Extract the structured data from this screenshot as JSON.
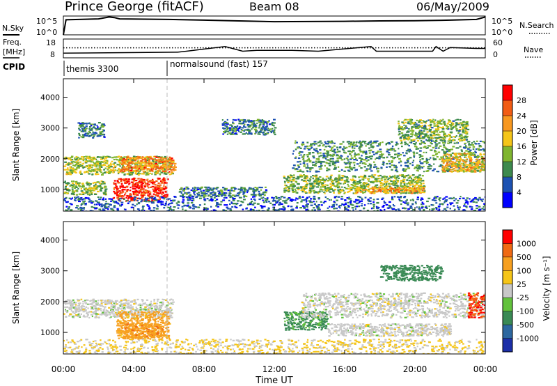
{
  "header": {
    "station": "Prince George (fitACF)",
    "beam": "Beam 08",
    "date": "06/May/2009"
  },
  "panels": {
    "nsky_label": "N.Sky",
    "nsearch_label": "N.Search",
    "freq_label_1": "Freq.",
    "freq_label_2": "[MHz]",
    "nave_label": "Nave",
    "cpid_label": "CPID",
    "nsky_ticks": [
      "10^5",
      "10^0"
    ],
    "nsearch_ticks": [
      "10^5",
      "10^0"
    ],
    "freq_ticks": [
      "18",
      "8"
    ],
    "nave_ticks": [
      "60",
      "0"
    ],
    "cpid_segments": [
      {
        "start_hour": 0.0,
        "label": "themis 3300"
      },
      {
        "start_hour": 6.0,
        "label": "normalsound (fast) 157"
      }
    ]
  },
  "axes": {
    "xlabel": "Time UT",
    "ylabel": "Slant Range [km]",
    "x_ticks": [
      "00:00",
      "04:00",
      "08:00",
      "12:00",
      "16:00",
      "20:00",
      "00:00"
    ],
    "y_ticks": [
      "1000",
      "2000",
      "3000",
      "4000"
    ]
  },
  "colorbars": {
    "power": {
      "label": "Power [dB]",
      "ticks": [
        "28",
        "24",
        "20",
        "16",
        "12",
        "8",
        "4"
      ],
      "colors": [
        "#0000ff",
        "#1d52b2",
        "#3d8a4e",
        "#7fb52f",
        "#f5c518",
        "#f89820",
        "#f25c14",
        "#ff0000"
      ]
    },
    "velocity": {
      "label": "Velocity [m s⁻¹]",
      "ticks": [
        "1000",
        "500",
        "100",
        "25",
        "-25",
        "-100",
        "-500",
        "-1000"
      ],
      "colors": [
        "#1c2fa8",
        "#2d68a0",
        "#3a8a55",
        "#62c23c",
        "#c8c8c8",
        "#f5c518",
        "#f7a020",
        "#f06a14",
        "#ff0000"
      ]
    }
  },
  "chart_data": [
    {
      "type": "line",
      "title": "N.Sky / N.Search",
      "x_unit": "hours UT",
      "x": [
        0,
        0.15,
        2,
        2.6,
        2.9,
        3.2,
        6,
        8,
        12,
        16,
        18,
        20,
        22,
        23.5,
        24
      ],
      "series": [
        {
          "name": "N.Sky",
          "values": [
            0.0,
            0.8,
            0.85,
            0.95,
            0.92,
            0.85,
            0.82,
            0.78,
            0.7,
            0.72,
            0.74,
            0.75,
            0.78,
            0.82,
            0.95
          ]
        }
      ],
      "ylim": [
        0,
        1
      ]
    },
    {
      "type": "line",
      "title": "Freq / Nave",
      "x": [
        0,
        6.5,
        7,
        9.2,
        10.2,
        11,
        13,
        14.5,
        17.5,
        17.8,
        21,
        21.2,
        21.6,
        22,
        23.5,
        24
      ],
      "series": [
        {
          "name": "Freq. [MHz]",
          "values": [
            10.5,
            11,
            11.5,
            14,
            11.5,
            12,
            12,
            11.5,
            14,
            11.5,
            11.5,
            14,
            11.5,
            13.5,
            13,
            13
          ]
        },
        {
          "name": "Nave",
          "values": [
            32,
            32,
            32,
            32,
            32,
            32,
            32,
            32,
            32,
            32,
            32,
            32,
            32,
            32,
            32,
            32
          ]
        }
      ],
      "ylim": [
        8,
        18
      ]
    },
    {
      "type": "heatmap",
      "title": "Power",
      "x_range": [
        0,
        24
      ],
      "y_range": [
        300,
        4600
      ],
      "ylabel": "Slant Range [km]",
      "zlabel": "Power [dB]",
      "zlim": [
        0,
        30
      ],
      "regions": [
        {
          "x": [
            0,
            6.2
          ],
          "y": [
            1500,
            2100
          ],
          "z": 14
        },
        {
          "x": [
            3.2,
            6.3
          ],
          "y": [
            1600,
            2100
          ],
          "z": 22
        },
        {
          "x": [
            2.8,
            5.9
          ],
          "y": [
            650,
            1400
          ],
          "z": 27
        },
        {
          "x": [
            0,
            2.4
          ],
          "y": [
            850,
            1300
          ],
          "z": 13
        },
        {
          "x": [
            6.5,
            11.5
          ],
          "y": [
            800,
            1100
          ],
          "z": 8
        },
        {
          "x": [
            12.5,
            20.5
          ],
          "y": [
            900,
            1500
          ],
          "z": 13
        },
        {
          "x": [
            16.5,
            20.5
          ],
          "y": [
            900,
            1100
          ],
          "z": 20
        },
        {
          "x": [
            13,
            24
          ],
          "y": [
            1600,
            2600
          ],
          "z": 10
        },
        {
          "x": [
            21.5,
            24
          ],
          "y": [
            1600,
            2200
          ],
          "z": 18
        },
        {
          "x": [
            0.8,
            2.3
          ],
          "y": [
            2700,
            3200
          ],
          "z": 8
        },
        {
          "x": [
            9,
            12
          ],
          "y": [
            2800,
            3300
          ],
          "z": 8
        },
        {
          "x": [
            19,
            23
          ],
          "y": [
            2600,
            3300
          ],
          "z": 12
        },
        {
          "x": [
            0,
            24
          ],
          "y": [
            300,
            800
          ],
          "z": 6
        }
      ]
    },
    {
      "type": "heatmap",
      "title": "Velocity",
      "x_range": [
        0,
        24
      ],
      "y_range": [
        300,
        4600
      ],
      "ylabel": "Slant Range [km]",
      "zlabel": "Velocity [m s^-1]",
      "zlim": [
        -1000,
        1000
      ],
      "regions": [
        {
          "x": [
            0,
            6.2
          ],
          "y": [
            1500,
            2100
          ],
          "z": 0
        },
        {
          "x": [
            3,
            6
          ],
          "y": [
            800,
            1700
          ],
          "z": -150
        },
        {
          "x": [
            3.4,
            5.6
          ],
          "y": [
            850,
            1300
          ],
          "z": -400
        },
        {
          "x": [
            12.5,
            15
          ],
          "y": [
            1100,
            1700
          ],
          "z": 120
        },
        {
          "x": [
            13.5,
            24
          ],
          "y": [
            1500,
            2300
          ],
          "z": 0
        },
        {
          "x": [
            18,
            21.5
          ],
          "y": [
            2700,
            3200
          ],
          "z": 200
        },
        {
          "x": [
            23,
            24
          ],
          "y": [
            1500,
            2300
          ],
          "z": -900
        },
        {
          "x": [
            15,
            22
          ],
          "y": [
            900,
            1300
          ],
          "z": 0
        },
        {
          "x": [
            0,
            24
          ],
          "y": [
            300,
            800
          ],
          "z": -30
        }
      ]
    }
  ]
}
